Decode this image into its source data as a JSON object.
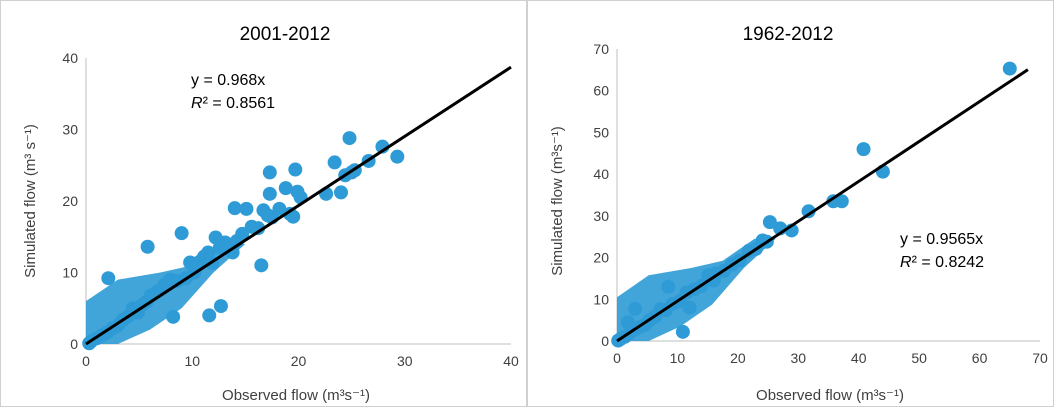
{
  "chart_data": [
    {
      "type": "scatter",
      "title": "2001-2012",
      "xlabel": "Observed flow (m³s⁻¹)",
      "ylabel": "Simulated flow (m³ s⁻¹)",
      "xlim": [
        0,
        40
      ],
      "ylim": [
        0,
        40
      ],
      "xticks": [
        0,
        10,
        20,
        30,
        40
      ],
      "yticks": [
        0,
        10,
        20,
        30,
        40
      ],
      "grid": false,
      "trendline": {
        "slope": 0.968,
        "x_range": [
          0,
          40
        ]
      },
      "annotation": {
        "equation": "y = 0.968x",
        "r2_label": "R",
        "r2_value": "² = 0.8561"
      },
      "marker_color": "#2e9bd6",
      "trend_color": "#000000",
      "series": [
        {
          "x": [
            29.3,
            27.9,
            26.6,
            25.3,
            24.8,
            25.0,
            24.4,
            24.0,
            23.4,
            22.6,
            20.2,
            19.9,
            19.7,
            19.5,
            19.2,
            18.8,
            18.2,
            17.5,
            17.3,
            17.1,
            16.7,
            16.2,
            15.6,
            15.1,
            14.7,
            14.2,
            13.8,
            13.1,
            12.6,
            12.2,
            11.9,
            11.5,
            11.1,
            10.7,
            10.2,
            9.8,
            9.4,
            8.6,
            7.9,
            7.4,
            6.8,
            6.1,
            5.7,
            5.3,
            4.9,
            4.4,
            4.0,
            3.5,
            3.0,
            2.5,
            2.0,
            1.5,
            1.0,
            0.5,
            0.3,
            12.7,
            11.6,
            17.3,
            5.8,
            2.1,
            9.0,
            8.2,
            16.5,
            14.0
          ],
          "y": [
            26.2,
            27.6,
            25.6,
            24.3,
            28.8,
            24.0,
            23.6,
            21.2,
            25.4,
            21.0,
            20.5,
            21.3,
            24.4,
            17.8,
            18.2,
            21.8,
            18.9,
            17.7,
            24.0,
            18.0,
            18.7,
            16.2,
            16.4,
            18.9,
            15.4,
            14.4,
            12.8,
            14.2,
            13.5,
            14.9,
            11.3,
            12.8,
            12.2,
            11.5,
            10.0,
            11.4,
            9.2,
            8.8,
            9.0,
            8.3,
            7.4,
            6.8,
            5.9,
            5.5,
            4.4,
            5.0,
            3.9,
            3.4,
            2.6,
            2.2,
            1.6,
            1.2,
            0.8,
            0.4,
            0.1,
            5.3,
            4.0,
            21.0,
            13.6,
            9.2,
            15.5,
            3.8,
            11.0,
            19.0
          ]
        }
      ]
    },
    {
      "type": "scatter",
      "title": "1962-2012",
      "xlabel": "Observed flow (m³s⁻¹)",
      "ylabel": "Simulated flow (m³s⁻¹)",
      "xlim": [
        0,
        70
      ],
      "ylim": [
        0,
        70
      ],
      "xticks": [
        0,
        10,
        20,
        30,
        40,
        50,
        60,
        70
      ],
      "yticks": [
        0,
        10,
        20,
        30,
        40,
        50,
        60,
        70
      ],
      "grid": false,
      "trendline": {
        "slope": 0.9565,
        "x_range": [
          0,
          68
        ]
      },
      "annotation": {
        "equation": "y = 0.9565x",
        "r2_label": "R",
        "r2_value": "² = 0.8242"
      },
      "marker_color": "#2e9bd6",
      "trend_color": "#000000",
      "series": [
        {
          "x": [
            65.0,
            44.0,
            40.8,
            37.2,
            35.8,
            31.7,
            28.9,
            27.0,
            25.3,
            24.8,
            24.1,
            23.0,
            21.8,
            20.3,
            19.0,
            17.7,
            16.4,
            15.1,
            14.0,
            12.8,
            11.5,
            10.4,
            9.2,
            8.1,
            7.2,
            6.3,
            5.4,
            4.6,
            3.7,
            2.9,
            2.1,
            1.3,
            0.6,
            0.2,
            10.9,
            3.0,
            16.0,
            8.5,
            12.0,
            1.8
          ],
          "y": [
            65.3,
            40.6,
            46.0,
            33.5,
            33.5,
            31.1,
            26.5,
            27.0,
            28.5,
            23.8,
            24.1,
            22.1,
            21.6,
            19.3,
            18.3,
            16.8,
            16.2,
            15.8,
            13.2,
            12.4,
            11.6,
            9.6,
            8.9,
            7.4,
            7.6,
            5.8,
            5.0,
            3.8,
            3.3,
            2.7,
            1.9,
            1.0,
            0.5,
            0.1,
            2.2,
            7.7,
            14.5,
            13.0,
            8.0,
            4.5
          ]
        }
      ]
    }
  ]
}
